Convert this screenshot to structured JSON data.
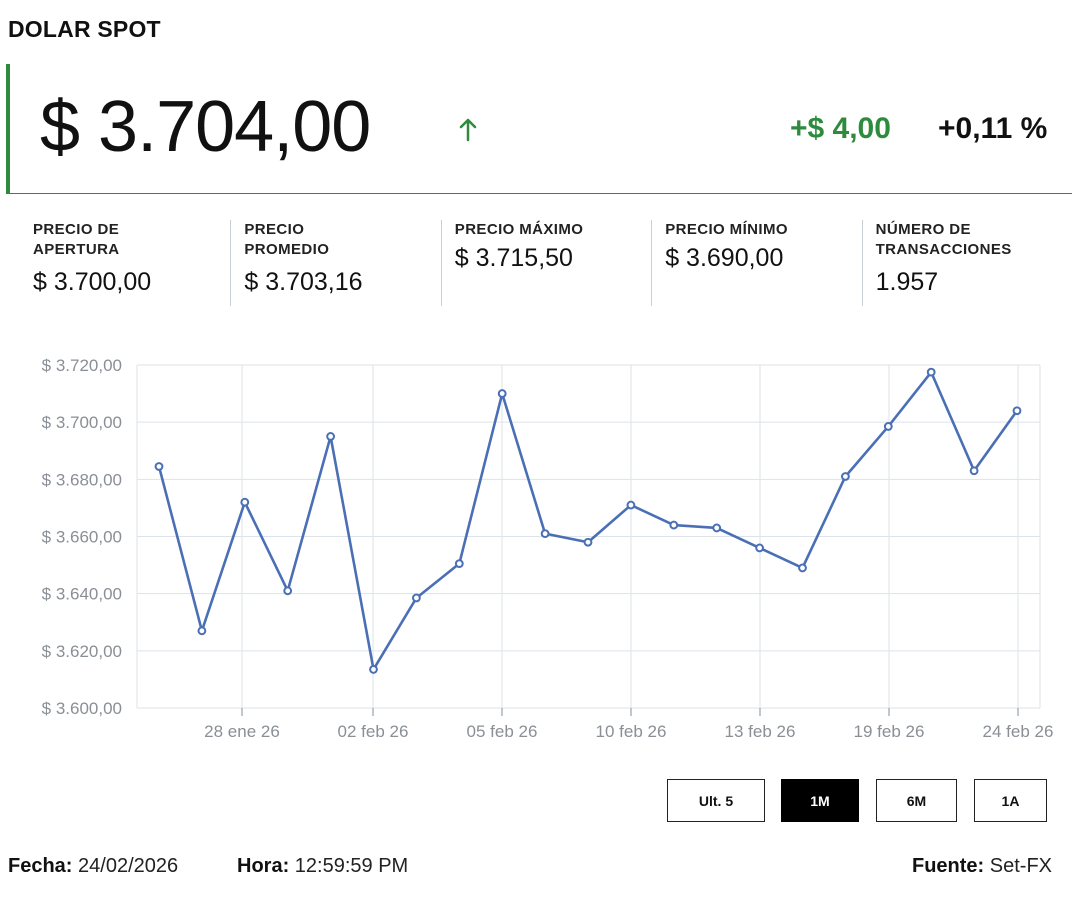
{
  "header": {
    "title": "DOLAR SPOT"
  },
  "price": {
    "value": "$ 3.704,00",
    "direction_icon": "arrow-up-icon",
    "change_abs": "+$ 4,00",
    "change_pct": "+0,11 %"
  },
  "colors": {
    "accent_green": "#2e8b3e",
    "line_blue": "#4a6fb5",
    "grid": "#dde3ea"
  },
  "stats": [
    {
      "label_1": "PRECIO DE",
      "label_2": "APERTURA",
      "value": "$ 3.700,00"
    },
    {
      "label_1": "PRECIO",
      "label_2": "PROMEDIO",
      "value": "$ 3.703,16"
    },
    {
      "label_1": "PRECIO MÁXIMO",
      "label_2": "",
      "value": "$ 3.715,50"
    },
    {
      "label_1": "PRECIO MÍNIMO",
      "label_2": "",
      "value": "$ 3.690,00"
    },
    {
      "label_1": "NÚMERO DE",
      "label_2": "TRANSACCIONES",
      "value": "1.957"
    }
  ],
  "chart_data": {
    "type": "line",
    "x_ticks": [
      "28 ene 26",
      "02 feb 26",
      "05 feb 26",
      "10 feb 26",
      "13 feb 26",
      "19 feb 26",
      "24 feb 26"
    ],
    "y_ticks": [
      "$ 3.720,00",
      "$ 3.700,00",
      "$ 3.680,00",
      "$ 3.660,00",
      "$ 3.640,00",
      "$ 3.620,00",
      "$ 3.600,00"
    ],
    "ylim": [
      3600,
      3720
    ],
    "grid": true,
    "series": [
      {
        "values": [
          3684.5,
          3627,
          3672,
          3641,
          3695,
          3613.5,
          3638.5,
          3650.5,
          3710,
          3661,
          3658,
          3671,
          3664,
          3663,
          3656,
          3649,
          3681,
          3698.5,
          3717.5,
          3683,
          3704
        ]
      }
    ]
  },
  "range_buttons": [
    {
      "label": "Ult. 5",
      "active": false
    },
    {
      "label": "1M",
      "active": true
    },
    {
      "label": "6M",
      "active": false
    },
    {
      "label": "1A",
      "active": false
    }
  ],
  "footer": {
    "date_label": "Fecha:",
    "date_value": "24/02/2026",
    "time_label": "Hora:",
    "time_value": "12:59:59 PM",
    "source_label": "Fuente:",
    "source_value": "Set-FX"
  }
}
